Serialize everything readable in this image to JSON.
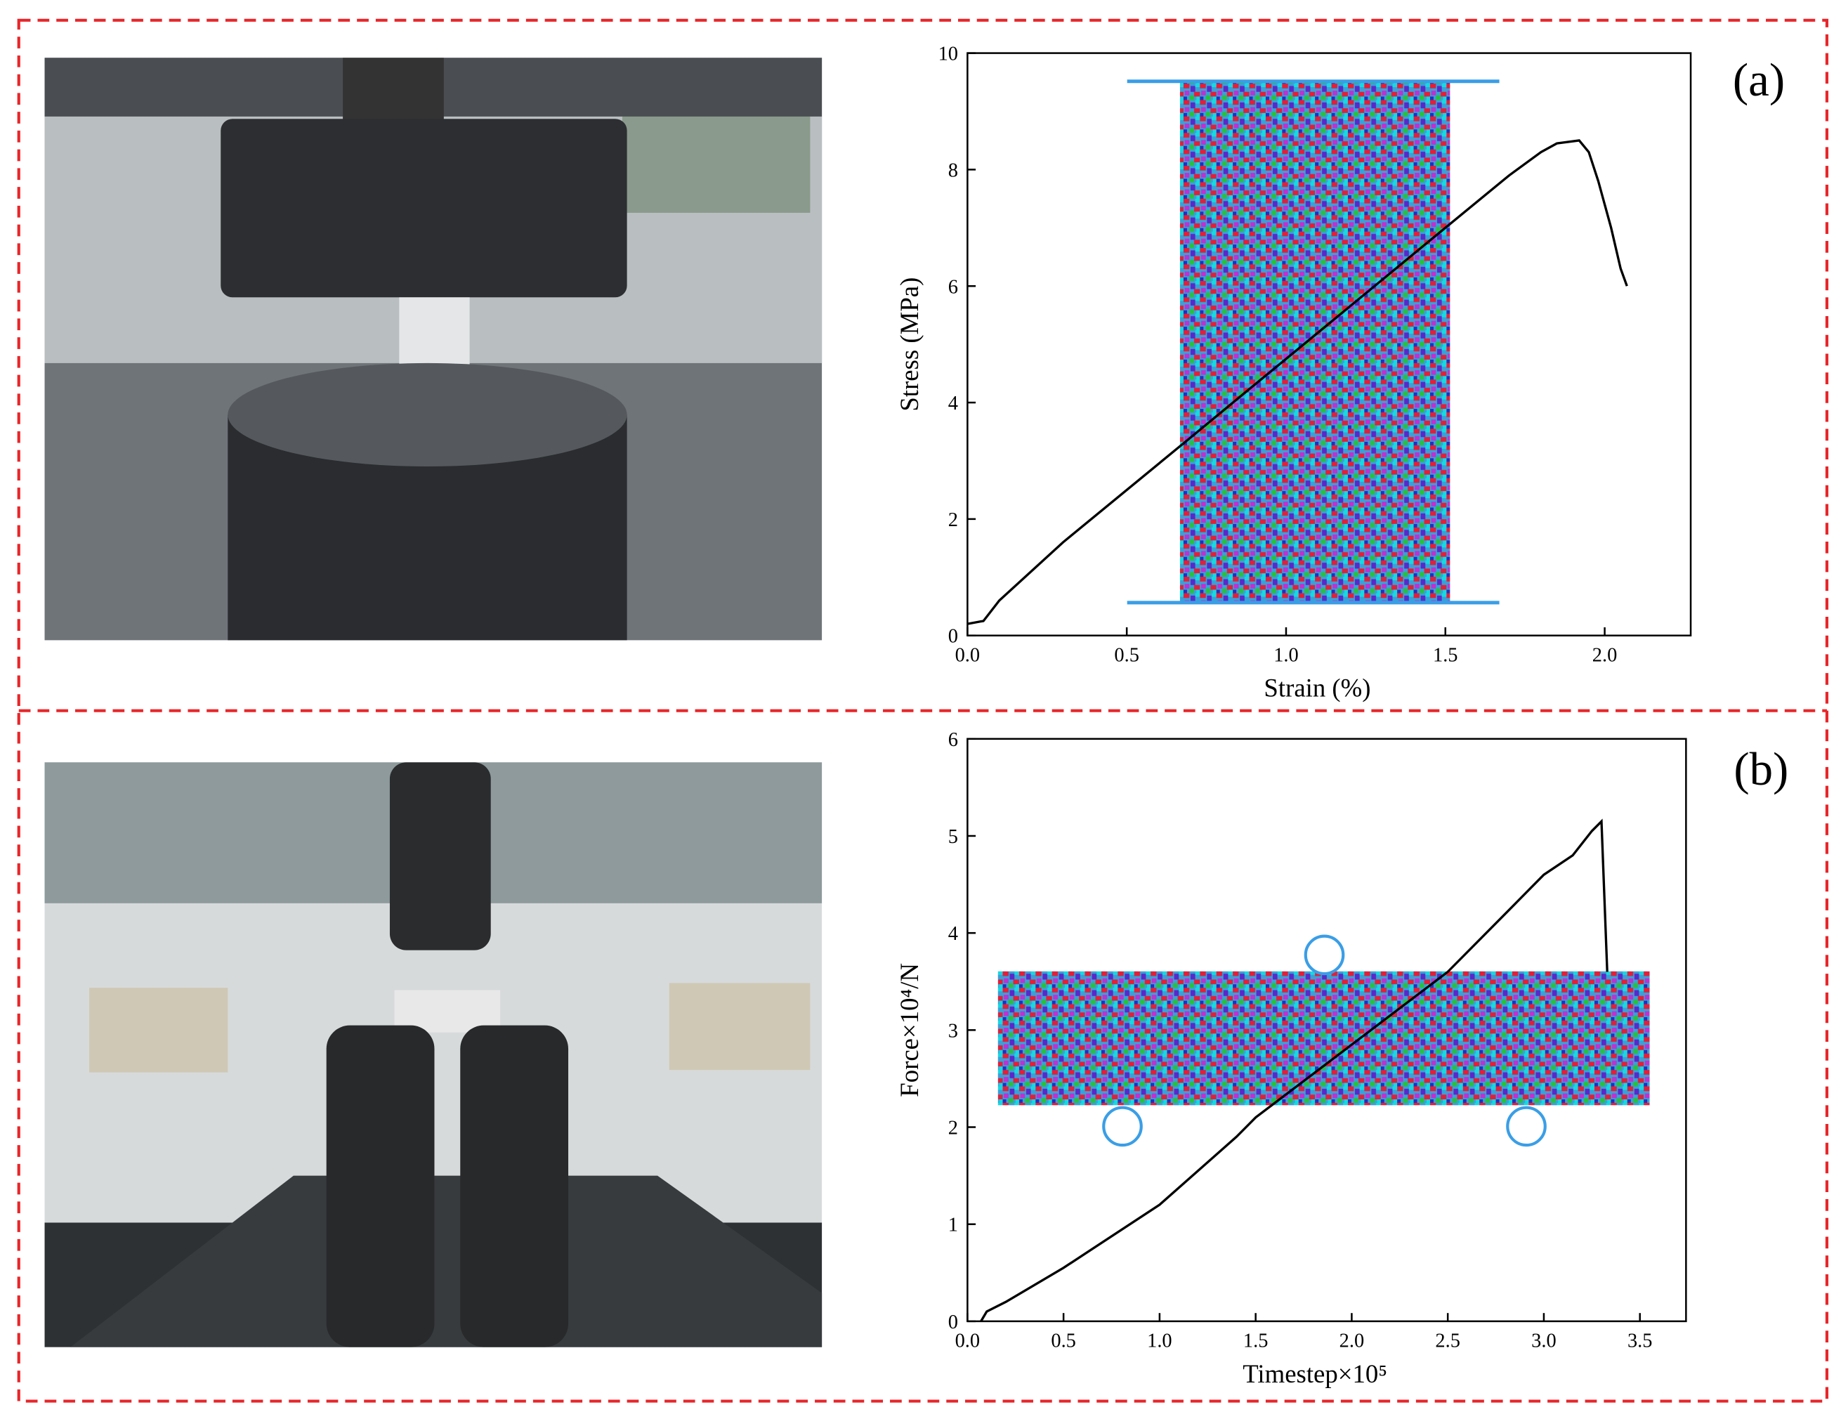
{
  "chart_data": [
    {
      "type": "line",
      "panel": "(a)",
      "x_label": "Strain (%)",
      "y_label": "Stress (MPa)",
      "color": "#000000",
      "x": [
        0.0,
        0.05,
        0.1,
        0.3,
        0.5,
        0.7,
        0.9,
        1.1,
        1.3,
        1.5,
        1.7,
        1.8,
        1.85,
        1.92,
        1.95,
        1.98,
        2.02,
        2.05,
        2.07
      ],
      "values": [
        0.2,
        0.25,
        0.6,
        1.6,
        2.5,
        3.4,
        4.3,
        5.2,
        6.1,
        7.0,
        7.9,
        8.3,
        8.45,
        8.5,
        8.3,
        7.8,
        7.0,
        6.3,
        6.0
      ],
      "xlim": [
        0,
        2.27
      ],
      "ylim": [
        0,
        10
      ],
      "xticks": [
        {
          "value": 0,
          "label": "0.0"
        },
        0.5,
        {
          "value": 1,
          "label": "1.0"
        },
        1.5,
        {
          "value": 2,
          "label": "2.0"
        }
      ],
      "yticks": [
        0,
        2,
        4,
        6,
        8,
        10
      ]
    },
    {
      "type": "line",
      "panel": "(b)",
      "x_label": "Timestep×10⁵",
      "y_label": "Force×10⁴/N",
      "color": "#000000",
      "x": [
        0.07,
        0.1,
        0.2,
        0.5,
        1.0,
        1.4,
        1.5,
        2.0,
        2.5,
        2.8,
        3.0,
        3.15,
        3.25,
        3.3,
        3.33
      ],
      "values": [
        0,
        0.1,
        0.2,
        0.55,
        1.2,
        1.9,
        2.1,
        2.85,
        3.6,
        4.2,
        4.6,
        4.8,
        5.05,
        5.15,
        3.6
      ],
      "xlim": [
        0,
        3.74
      ],
      "ylim": [
        0,
        6
      ],
      "xticks": [
        {
          "value": 0,
          "label": "0.0"
        },
        0.5,
        {
          "value": 1,
          "label": "1.0"
        },
        1.5,
        {
          "value": 2,
          "label": "2.0"
        },
        2.5,
        {
          "value": 3,
          "label": "3.0"
        },
        3.5
      ],
      "yticks": [
        0,
        1,
        2,
        3,
        4,
        5,
        6
      ]
    }
  ]
}
